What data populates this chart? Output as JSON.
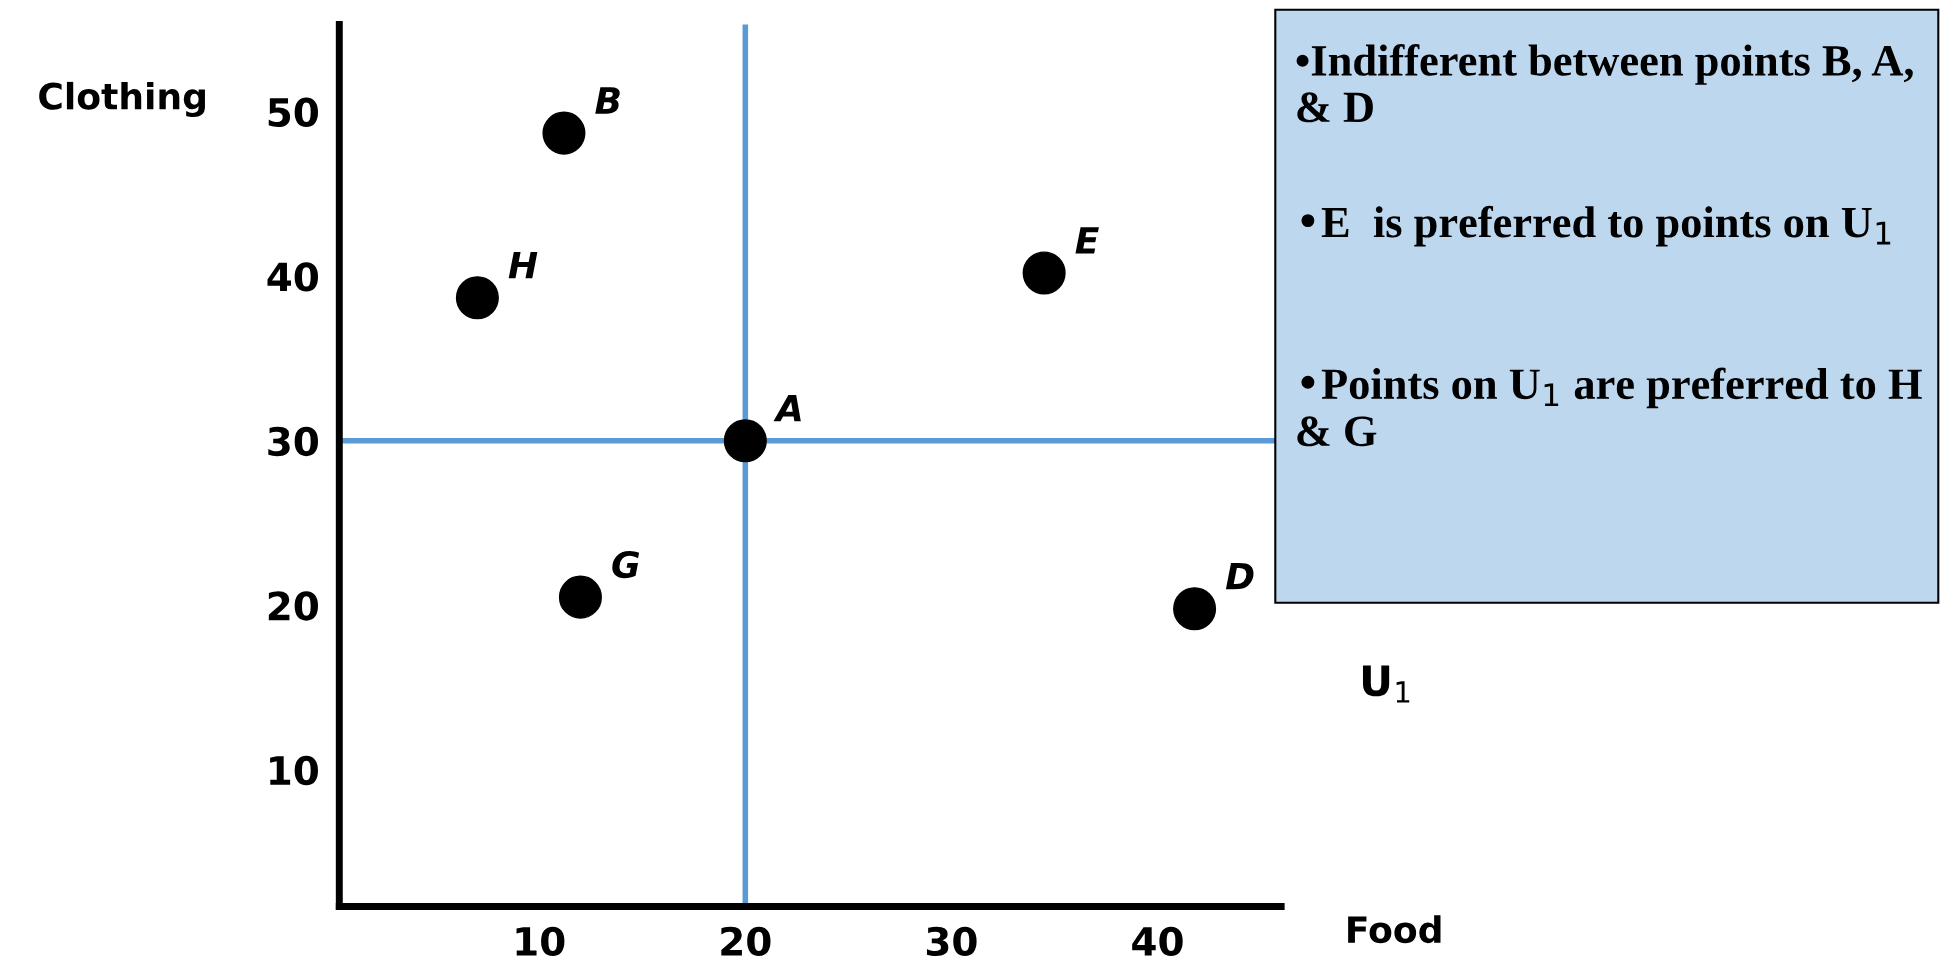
{
  "chart_data": {
    "type": "scatter",
    "xlabel": "Food",
    "ylabel": "Clothing",
    "x": [
      11.2,
      7.0,
      34.5,
      20,
      12.0,
      41.8
    ],
    "series": [
      {
        "color": "#000000",
        "values": [
          48.7,
          38.7,
          40.2,
          30,
          20.5,
          19.8
        ]
      }
    ],
    "marker": "circle",
    "xlim": [
      0.3,
      46
    ],
    "ylim": [
      1.7,
      55.3
    ],
    "xticks": [
      10,
      20,
      30,
      40
    ],
    "yticks": [
      10,
      20,
      30,
      40,
      50
    ],
    "grid": false,
    "ref_lines": [
      {
        "axis": "x",
        "value": 20,
        "color": "#5b9bd5"
      },
      {
        "axis": "y",
        "value": 30,
        "color": "#5b9bd5"
      }
    ],
    "annotations": [
      {
        "text": "B",
        "x": 11.2,
        "y": 48.7
      },
      {
        "text": "H",
        "x": 7.0,
        "y": 38.7
      },
      {
        "text": "E",
        "x": 34.5,
        "y": 40.2
      },
      {
        "text": "A",
        "x": 20,
        "y": 30
      },
      {
        "text": "G",
        "x": 12.0,
        "y": 20.5
      },
      {
        "text": "D",
        "x": 41.8,
        "y": 19.8
      },
      "U$_{1}$",
      "•Indifferent between points B, A, & D",
      "•E  is preferred to points on U$_{1}$",
      "•Points on U$_{1}$ are preferred to H & G"
    ]
  }
}
